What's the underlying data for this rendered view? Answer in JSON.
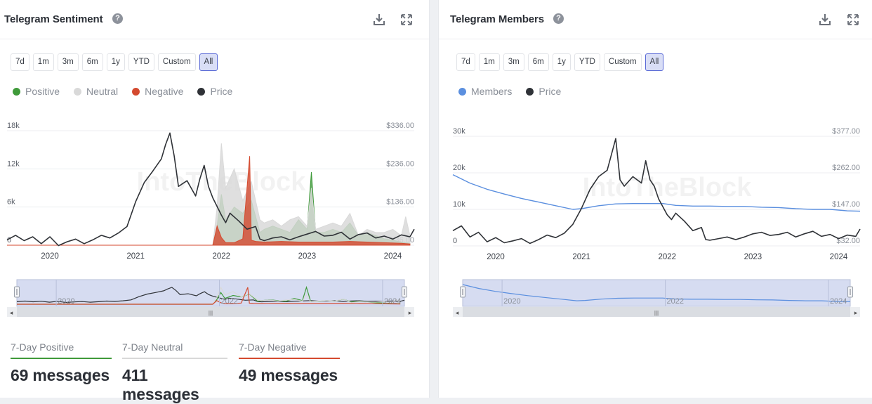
{
  "left_panel": {
    "title": "Telegram Sentiment",
    "help": "?",
    "ranges": [
      "7d",
      "1m",
      "3m",
      "6m",
      "1y",
      "YTD",
      "Custom",
      "All"
    ],
    "active_range": "All",
    "legend": [
      {
        "label": "Positive",
        "color": "#3f9a3a"
      },
      {
        "label": "Neutral",
        "color": "#d9d9d9"
      },
      {
        "label": "Negative",
        "color": "#d44a2f"
      },
      {
        "label": "Price",
        "color": "#2f3237"
      }
    ],
    "watermark": "IntoTheBlock",
    "nav_labels": [
      "2020",
      "2022",
      "2024"
    ],
    "stats": [
      {
        "label": "7-Day Positive",
        "value": "69 messages",
        "color": "#3f9a3a"
      },
      {
        "label": "7-Day Neutral",
        "value": "411 messages",
        "color": "#d9d9d9"
      },
      {
        "label": "7-Day Negative",
        "value": "49 messages",
        "color": "#d44a2f"
      }
    ]
  },
  "right_panel": {
    "title": "Telegram Members",
    "help": "?",
    "ranges": [
      "7d",
      "1m",
      "3m",
      "6m",
      "1y",
      "YTD",
      "Custom",
      "All"
    ],
    "active_range": "All",
    "legend": [
      {
        "label": "Members",
        "color": "#5b8fdf"
      },
      {
        "label": "Price",
        "color": "#2f3237"
      }
    ],
    "watermark": "IntoTheBlock",
    "nav_labels": [
      "2020",
      "2022",
      "2024"
    ]
  },
  "chart_data": [
    {
      "type": "area",
      "title": "Telegram Sentiment",
      "x_range": [
        2019.5,
        2024.25
      ],
      "x_ticks": [
        "2020",
        "2021",
        "2022",
        "2023",
        "2024"
      ],
      "y_left_ticks": [
        "0",
        "6k",
        "12k",
        "18k"
      ],
      "y_left_range": [
        0,
        18000
      ],
      "y_right_ticks": [
        "$36.00",
        "$136.00",
        "$236.00",
        "$336.00"
      ],
      "y_right_range": [
        36,
        336
      ],
      "series": [
        {
          "name": "Price",
          "axis": "right",
          "color": "#2f3237",
          "x": [
            2019.5,
            2019.6,
            2019.7,
            2019.8,
            2019.9,
            2020.0,
            2020.1,
            2020.2,
            2020.3,
            2020.4,
            2020.5,
            2020.6,
            2020.7,
            2020.8,
            2020.9,
            2021.0,
            2021.1,
            2021.2,
            2021.3,
            2021.35,
            2021.4,
            2021.45,
            2021.5,
            2021.6,
            2021.7,
            2021.75,
            2021.8,
            2021.85,
            2021.9,
            2022.0,
            2022.05,
            2022.1,
            2022.2,
            2022.3,
            2022.4,
            2022.45,
            2022.5,
            2022.6,
            2022.7,
            2022.8,
            2022.9,
            2023.0,
            2023.1,
            2023.2,
            2023.3,
            2023.4,
            2023.5,
            2023.6,
            2023.7,
            2023.8,
            2023.9,
            2024.0,
            2024.1,
            2024.2,
            2024.25
          ],
          "values": [
            50,
            62,
            48,
            58,
            40,
            58,
            35,
            45,
            52,
            40,
            50,
            62,
            55,
            68,
            85,
            150,
            200,
            230,
            262,
            300,
            330,
            270,
            190,
            205,
            165,
            210,
            245,
            190,
            160,
            115,
            95,
            120,
            100,
            78,
            85,
            52,
            48,
            55,
            58,
            50,
            58,
            65,
            72,
            60,
            62,
            70,
            52,
            64,
            68,
            55,
            60,
            52,
            63,
            58,
            78
          ]
        },
        {
          "name": "Positive",
          "axis": "left",
          "color": "#3f9a3a",
          "x": [
            2019.5,
            2021.9,
            2021.95,
            2022.0,
            2022.05,
            2022.15,
            2022.25,
            2022.35,
            2022.45,
            2022.5,
            2022.6,
            2022.7,
            2022.8,
            2022.9,
            2023.0,
            2023.05,
            2023.1,
            2023.2,
            2023.3,
            2023.4,
            2023.5,
            2023.6,
            2023.7,
            2023.8,
            2023.9,
            2024.0,
            2024.1,
            2024.2
          ],
          "values": [
            0,
            0,
            3000,
            8000,
            4000,
            6000,
            5000,
            7000,
            2000,
            2500,
            3000,
            2500,
            2000,
            4000,
            2500,
            11500,
            2000,
            2000,
            2500,
            2000,
            3500,
            1500,
            2000,
            1500,
            1000,
            800,
            500,
            300
          ]
        },
        {
          "name": "Neutral",
          "axis": "left",
          "color": "#d9d9d9",
          "x": [
            2019.5,
            2021.9,
            2021.95,
            2022.0,
            2022.05,
            2022.15,
            2022.25,
            2022.35,
            2022.45,
            2022.5,
            2022.6,
            2022.7,
            2022.8,
            2022.9,
            2023.0,
            2023.05,
            2023.1,
            2023.2,
            2023.3,
            2023.4,
            2023.5,
            2023.6,
            2023.7,
            2023.8,
            2023.9,
            2024.0,
            2024.1,
            2024.15,
            2024.2
          ],
          "values": [
            0,
            0,
            6000,
            16000,
            9000,
            12000,
            7000,
            10000,
            4000,
            3500,
            4000,
            3000,
            4000,
            4500,
            3000,
            9000,
            2500,
            3000,
            3500,
            3000,
            5000,
            1500,
            2500,
            2000,
            2000,
            2500,
            1500,
            4500,
            1500
          ]
        },
        {
          "name": "Negative",
          "axis": "left",
          "color": "#d44a2f",
          "x": [
            2019.5,
            2021.9,
            2021.95,
            2022.0,
            2022.05,
            2022.15,
            2022.25,
            2022.33,
            2022.35,
            2022.4,
            2022.5,
            2022.7,
            2022.9,
            2023.1,
            2023.3,
            2023.5,
            2023.7,
            2023.9,
            2024.1,
            2024.2
          ],
          "values": [
            0,
            0,
            3000,
            1200,
            400,
            400,
            1000,
            14000,
            800,
            600,
            500,
            600,
            500,
            500,
            500,
            600,
            500,
            400,
            300,
            200
          ]
        }
      ]
    },
    {
      "type": "line",
      "title": "Telegram Members",
      "x_range": [
        2019.5,
        2024.25
      ],
      "x_ticks": [
        "2020",
        "2021",
        "2022",
        "2023",
        "2024"
      ],
      "y_left_ticks": [
        "0",
        "10k",
        "20k",
        "30k"
      ],
      "y_left_range": [
        0,
        30000
      ],
      "y_right_ticks": [
        "$32.00",
        "$147.00",
        "$262.00",
        "$377.00"
      ],
      "y_right_range": [
        32,
        377
      ],
      "series": [
        {
          "name": "Members",
          "axis": "left",
          "color": "#5b8fdf",
          "x": [
            2019.5,
            2019.7,
            2019.9,
            2020.1,
            2020.3,
            2020.5,
            2020.7,
            2020.9,
            2021.0,
            2021.2,
            2021.4,
            2021.6,
            2021.8,
            2021.95,
            2022.1,
            2022.3,
            2022.5,
            2022.7,
            2022.9,
            2023.1,
            2023.3,
            2023.5,
            2023.7,
            2023.9,
            2024.1,
            2024.25
          ],
          "values": [
            19500,
            17200,
            15500,
            14200,
            13000,
            12000,
            11000,
            10000,
            10200,
            11000,
            11500,
            11600,
            11600,
            11600,
            11100,
            10900,
            10900,
            10800,
            10800,
            10600,
            10500,
            10200,
            10000,
            10000,
            9600,
            9500
          ]
        },
        {
          "name": "Price",
          "axis": "right",
          "color": "#2f3237",
          "x": [
            2019.5,
            2019.6,
            2019.7,
            2019.8,
            2019.9,
            2020.0,
            2020.1,
            2020.2,
            2020.3,
            2020.4,
            2020.5,
            2020.6,
            2020.7,
            2020.8,
            2020.9,
            2021.0,
            2021.1,
            2021.2,
            2021.3,
            2021.35,
            2021.4,
            2021.45,
            2021.5,
            2021.6,
            2021.7,
            2021.75,
            2021.8,
            2021.85,
            2021.9,
            2022.0,
            2022.05,
            2022.1,
            2022.2,
            2022.3,
            2022.4,
            2022.45,
            2022.5,
            2022.6,
            2022.7,
            2022.8,
            2022.9,
            2023.0,
            2023.1,
            2023.2,
            2023.3,
            2023.4,
            2023.5,
            2023.6,
            2023.7,
            2023.8,
            2023.9,
            2024.0,
            2024.1,
            2024.2,
            2024.25
          ],
          "values": [
            80,
            95,
            60,
            75,
            45,
            58,
            42,
            48,
            55,
            40,
            52,
            66,
            58,
            72,
            100,
            150,
            210,
            250,
            270,
            320,
            370,
            240,
            220,
            250,
            230,
            300,
            240,
            220,
            180,
            130,
            115,
            135,
            110,
            80,
            90,
            52,
            50,
            55,
            60,
            52,
            60,
            70,
            75,
            65,
            68,
            75,
            60,
            70,
            78,
            62,
            68,
            55,
            66,
            62,
            85
          ]
        }
      ]
    }
  ]
}
